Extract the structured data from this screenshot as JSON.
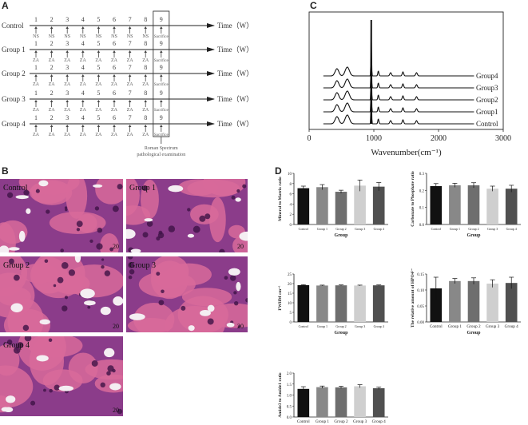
{
  "panels": {
    "a": "A",
    "b": "B",
    "c": "C",
    "d": "D"
  },
  "timeline": {
    "axis_label": "Time（W）",
    "weeks": [
      "1",
      "2",
      "3",
      "4",
      "5",
      "6",
      "7",
      "8",
      "9"
    ],
    "rows": [
      {
        "label": "Control",
        "marker": "NS"
      },
      {
        "label": "Group 1",
        "marker": "ZA"
      },
      {
        "label": "Group 2",
        "marker": "ZA"
      },
      {
        "label": "Group 3",
        "marker": "ZA"
      },
      {
        "label": "Group 4",
        "marker": "ZA"
      }
    ],
    "sacrifice_label": "Sacrifice",
    "endpoint_line1": "Roman Spectrum",
    "endpoint_line2": "pathological examination"
  },
  "histology": {
    "scale_label": "20",
    "images": [
      {
        "label": "Control"
      },
      {
        "label": "Group 1"
      },
      {
        "label": "Group 2"
      },
      {
        "label": "Group 3"
      },
      {
        "label": "Group 4"
      }
    ]
  },
  "spectrum": {
    "chart_data": {
      "type": "line",
      "xlabel": "Wavenumber(cm⁻¹)",
      "xlim": [
        0,
        3000
      ],
      "xticks": [
        "0",
        "1000",
        "2000",
        "3000"
      ],
      "main_peak_x": 960,
      "series": [
        {
          "name": "Control",
          "offset": 0
        },
        {
          "name": "Group1",
          "offset": 1
        },
        {
          "name": "Group2",
          "offset": 2
        },
        {
          "name": "Group3",
          "offset": 3
        },
        {
          "name": "Group4",
          "offset": 4
        }
      ]
    }
  },
  "bar_charts": {
    "colors": [
      "#111111",
      "#888888",
      "#6e6e6e",
      "#cfcfcf",
      "#505050"
    ],
    "chart_data": [
      {
        "type": "bar",
        "ylabel": "Mineral to Matrix ratio",
        "xlabel": "Group",
        "categories": [
          "Control",
          "Group 1",
          "Group 2",
          "Group 3",
          "Group 4"
        ],
        "values": [
          7.1,
          7.3,
          6.4,
          7.6,
          7.4
        ],
        "errors": [
          0.4,
          0.5,
          0.3,
          1.1,
          0.8
        ],
        "ylim": [
          0,
          10
        ],
        "yticks": [
          "0",
          "2",
          "4",
          "6",
          "8",
          "10"
        ]
      },
      {
        "type": "bar",
        "ylabel": "Carbonate to Phosphate ratio",
        "xlabel": "Group",
        "categories": [
          "Control",
          "Group 1",
          "Group 2",
          "Group 3",
          "Group 4"
        ],
        "values": [
          0.225,
          0.23,
          0.23,
          0.21,
          0.21
        ],
        "errors": [
          0.015,
          0.012,
          0.015,
          0.015,
          0.02
        ],
        "ylim": [
          0,
          0.3
        ],
        "yticks": [
          "0.0",
          "0.1",
          "0.2",
          "0.3"
        ]
      },
      {
        "type": "bar",
        "ylabel": "FWHM cm⁻¹",
        "xlabel": "Group",
        "categories": [
          "Control",
          "Group 1",
          "Group 2",
          "Group 3",
          "Group 4"
        ],
        "values": [
          19.2,
          19.0,
          19.1,
          19.0,
          19.1
        ],
        "errors": [
          0.2,
          0.2,
          0.2,
          0.2,
          0.2
        ],
        "ylim": [
          0,
          25
        ],
        "yticks": [
          "0",
          "5",
          "10",
          "15",
          "20",
          "25"
        ]
      },
      {
        "type": "bar",
        "ylabel": "The relative amount of HPO4²⁻",
        "xlabel": "Group",
        "categories": [
          "Control",
          "Group 1",
          "Group 2",
          "Group 3",
          "Group 4"
        ],
        "values": [
          0.105,
          0.128,
          0.128,
          0.12,
          0.122
        ],
        "errors": [
          0.035,
          0.008,
          0.01,
          0.012,
          0.018
        ],
        "ylim": [
          0,
          0.15
        ],
        "yticks": [
          "0.00",
          "0.05",
          "0.10",
          "0.15"
        ]
      },
      {
        "type": "bar",
        "ylabel": "Amide3 to Amide1 ratio",
        "xlabel": "Group",
        "categories": [
          "Control",
          "Group 1",
          "Group 2",
          "Group 3",
          "Group 4"
        ],
        "values": [
          1.28,
          1.36,
          1.35,
          1.4,
          1.31
        ],
        "errors": [
          0.1,
          0.05,
          0.05,
          0.07,
          0.05
        ],
        "ylim": [
          0,
          2
        ],
        "yticks": [
          "0.0",
          "0.5",
          "1.0",
          "1.5",
          "2.0"
        ]
      }
    ]
  }
}
